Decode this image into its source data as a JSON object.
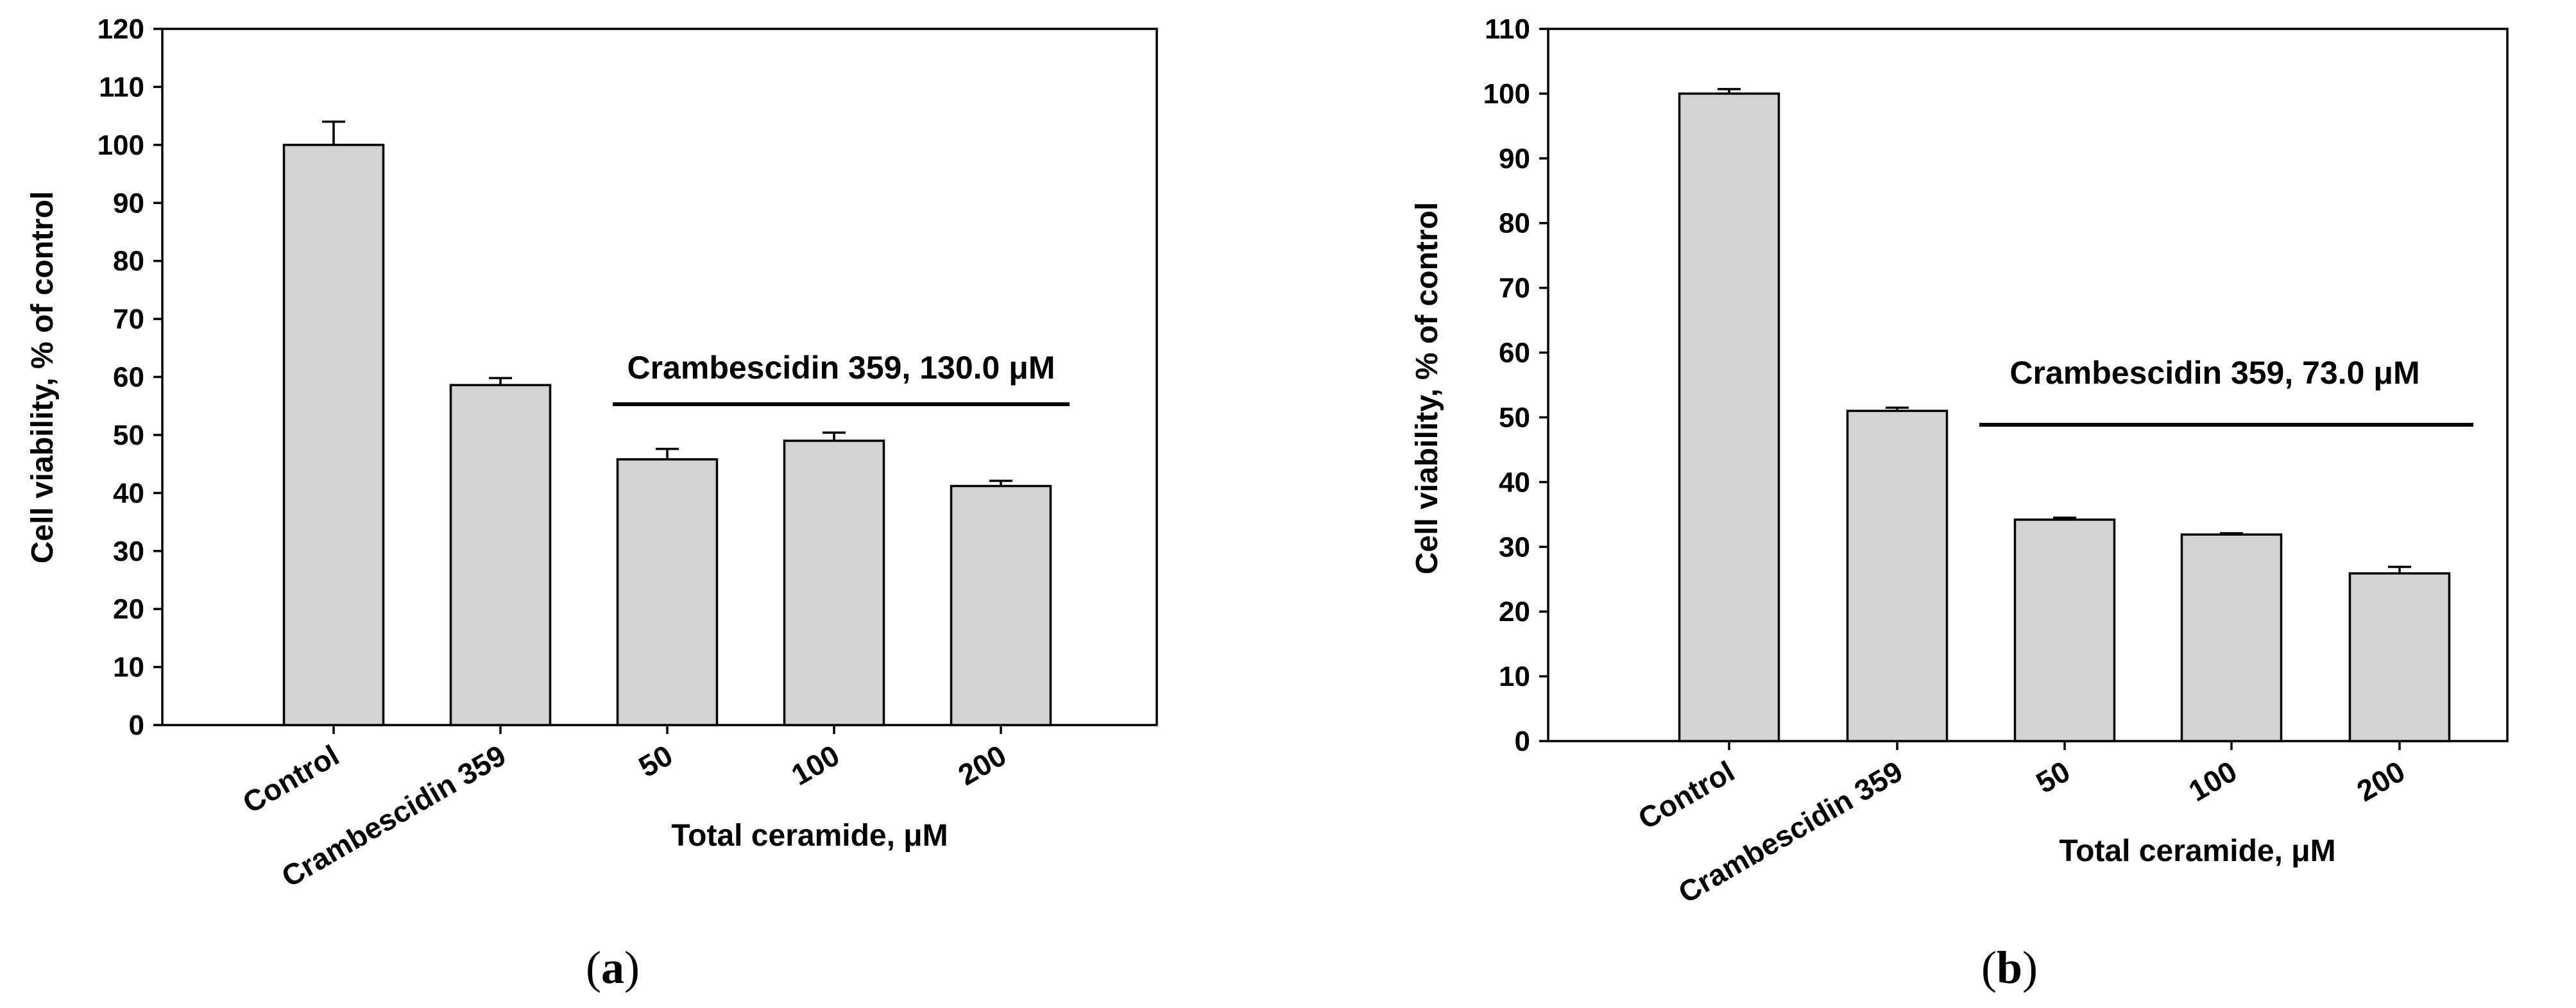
{
  "chart_data": [
    {
      "type": "bar",
      "panel": "a",
      "categories": [
        "Control",
        "Crambescidin 359",
        "50",
        "100",
        "200"
      ],
      "values": [
        100,
        58.6,
        45.8,
        49.0,
        41.2
      ],
      "errors": [
        4.0,
        1.2,
        1.8,
        1.4,
        0.9
      ],
      "ylabel": "Cell viability, % of control",
      "xlabel": "Total ceramide, μM",
      "ylim": [
        0,
        120
      ],
      "yticks": [
        0,
        10,
        20,
        30,
        40,
        50,
        60,
        70,
        80,
        90,
        100,
        110,
        120
      ],
      "annotation": "Crambescidin 359, 130.0 μM",
      "bar_color": "#d3d3d3"
    },
    {
      "type": "bar",
      "panel": "b",
      "categories": [
        "Control",
        "Crambescidin 359",
        "50",
        "100",
        "200"
      ],
      "values": [
        100,
        51.0,
        34.2,
        31.9,
        25.9
      ],
      "errors": [
        0.7,
        0.5,
        0.3,
        0.2,
        1.0
      ],
      "ylabel": "Cell viability, % of control",
      "xlabel": "Total ceramide, μM",
      "ylim": [
        0,
        110
      ],
      "yticks": [
        0,
        10,
        20,
        30,
        40,
        50,
        60,
        70,
        80,
        90,
        100,
        110
      ],
      "annotation": "Crambescidin 359, 73.0 μM",
      "bar_color": "#d3d3d3"
    }
  ],
  "panel_labels": [
    {
      "open": "(",
      "letter": "a",
      "close": ")"
    },
    {
      "open": "(",
      "letter": "b",
      "close": ")"
    }
  ]
}
